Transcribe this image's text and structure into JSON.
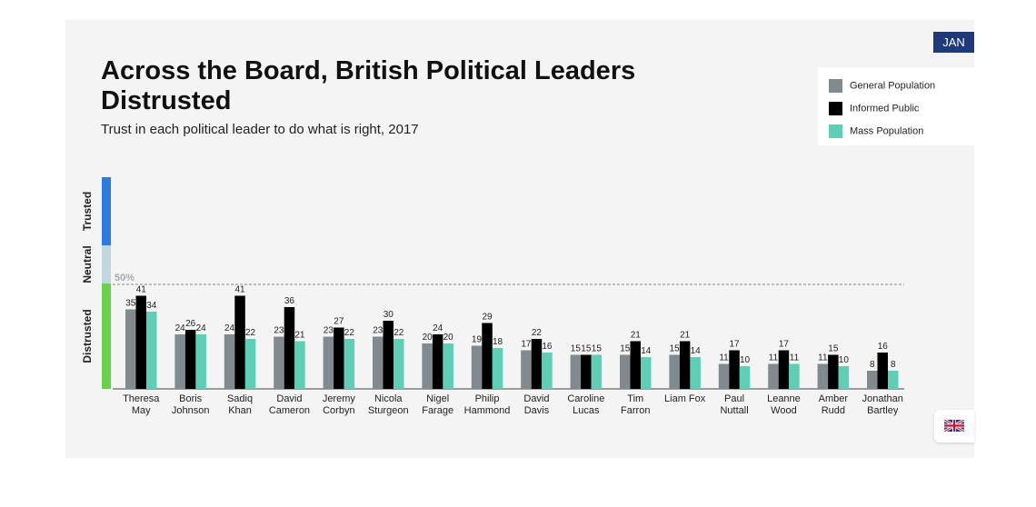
{
  "month_badge": "JAN",
  "legend": [
    {
      "label": "General Population",
      "color": "#808a8f"
    },
    {
      "label": "Informed Public",
      "color": "#000000"
    },
    {
      "label": "Mass Population",
      "color": "#5ecfb5"
    }
  ],
  "zones": [
    {
      "label": "Trusted",
      "color": "#2b7be0"
    },
    {
      "label": "Neutral",
      "color": "#c0d7dd"
    },
    {
      "label": "Distrusted",
      "color": "#6ad14a"
    }
  ],
  "flag": "gb-flag-icon",
  "chart_data": {
    "type": "bar",
    "title": "Across the Board, British Political Leaders Distrusted",
    "subtitle": "Trust in each political leader to do what is right, 2017",
    "threshold_label": "50%",
    "threshold_value": 50,
    "ylim": [
      0,
      64
    ],
    "categories": [
      [
        "Theresa",
        "May"
      ],
      [
        "Boris",
        "Johnson"
      ],
      [
        "Sadiq",
        "Khan"
      ],
      [
        "David",
        "Cameron"
      ],
      [
        "Jeremy",
        "Corbyn"
      ],
      [
        "Nicola",
        "Sturgeon"
      ],
      [
        "Nigel",
        "Farage"
      ],
      [
        "Philip",
        "Hammond"
      ],
      [
        "David",
        "Davis"
      ],
      [
        "Caroline",
        "Lucas"
      ],
      [
        "Tim",
        "Farron"
      ],
      [
        "Liam Fox"
      ],
      [
        "Paul",
        "Nuttall"
      ],
      [
        "Leanne",
        "Wood"
      ],
      [
        "Amber",
        "Rudd"
      ],
      [
        "Jonathan",
        "Bartley"
      ]
    ],
    "series": [
      {
        "name": "General Population",
        "color": "#808a8f",
        "values": [
          35,
          24,
          24,
          23,
          23,
          23,
          20,
          19,
          17,
          15,
          15,
          15,
          11,
          11,
          11,
          8
        ]
      },
      {
        "name": "Informed Public",
        "color": "#000000",
        "values": [
          41,
          26,
          41,
          36,
          27,
          30,
          24,
          29,
          22,
          15,
          21,
          21,
          17,
          17,
          15,
          16
        ]
      },
      {
        "name": "Mass Population",
        "color": "#5ecfb5",
        "values": [
          34,
          24,
          22,
          21,
          22,
          22,
          20,
          18,
          16,
          15,
          14,
          14,
          10,
          11,
          10,
          8
        ]
      }
    ]
  }
}
